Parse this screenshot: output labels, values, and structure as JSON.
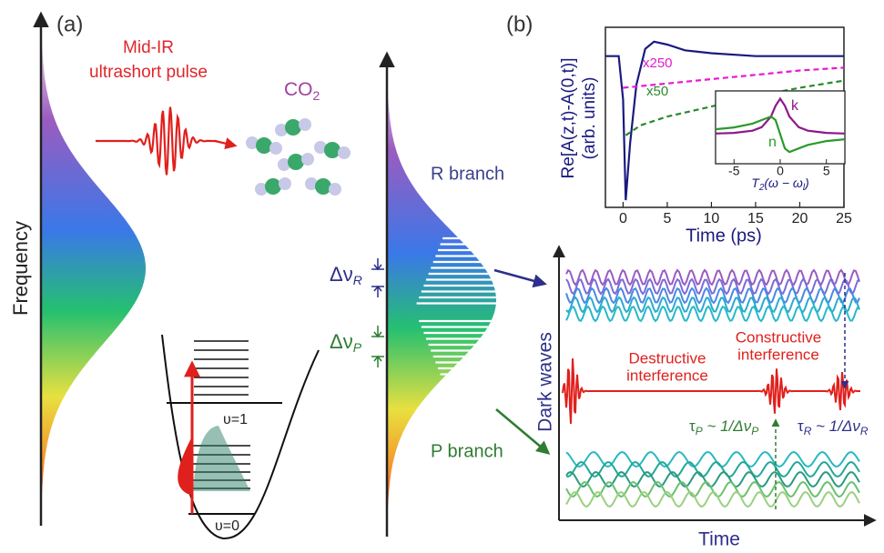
{
  "panel_a": {
    "label": "(a)",
    "pulse_title": [
      "Mid-IR",
      "ultrashort pulse"
    ],
    "molecule": {
      "base": "CO",
      "sub": "2"
    },
    "axis_label": "Frequency",
    "level_upper": "υ=1",
    "level_lower": "υ=0",
    "r_branch": "R branch",
    "p_branch": "P branch",
    "delta_r": {
      "symbol": "Δν",
      "sub": "R"
    },
    "delta_p": {
      "symbol": "Δν",
      "sub": "P"
    }
  },
  "panel_b": {
    "label": "(b)",
    "axis_y": "Dark waves",
    "axis_x": "Time",
    "destructive": [
      "Destructive",
      "interference"
    ],
    "constructive": [
      "Constructive",
      "interference"
    ],
    "tau_p": [
      "τ",
      "P",
      " ~ 1/Δν",
      "P"
    ],
    "tau_r": [
      "τ",
      "R",
      " ~ 1/Δν",
      "R"
    ]
  },
  "chart_data": {
    "type": "line",
    "ylabel": "Re[A(z,t)-A(0,t)]",
    "ylabel2": "(arb. units)",
    "xlabel": "Time (ps)",
    "xlim": [
      -2,
      25
    ],
    "xticks": [
      0,
      5,
      10,
      15,
      20,
      25
    ],
    "ylim": [
      -1.05,
      0.2
    ],
    "series": [
      {
        "color": "#1a1a80",
        "x": [
          -2,
          -0.5,
          0,
          0.3,
          0.8,
          1.5,
          2.5,
          3.5,
          5,
          7,
          10,
          15,
          20,
          25
        ],
        "values": [
          0,
          0,
          -0.3,
          -1,
          -0.6,
          -0.2,
          0.05,
          0.1,
          0.08,
          0.04,
          0.02,
          0,
          0,
          0
        ]
      },
      {
        "name": "x250",
        "color": "#e619d0",
        "dashed": true,
        "x": [
          0,
          5,
          10,
          15,
          20,
          25
        ],
        "values": [
          -0.22,
          -0.19,
          -0.16,
          -0.13,
          -0.1,
          -0.08
        ]
      },
      {
        "name": "x50",
        "color": "#2a8a2a",
        "dashed": true,
        "x": [
          0.3,
          2,
          5,
          10,
          15,
          20,
          25
        ],
        "values": [
          -0.55,
          -0.48,
          -0.42,
          -0.35,
          -0.28,
          -0.22,
          -0.17
        ]
      }
    ],
    "inset": {
      "xlim": [
        -7,
        7
      ],
      "xticks": [
        -5,
        0,
        5
      ],
      "ylim": [
        -0.7,
        1.05
      ],
      "xlabel": [
        "T",
        "2",
        "(ω − ω",
        "l",
        ")"
      ],
      "series": [
        {
          "name": "k",
          "color": "#8b1a8b",
          "x": [
            -7,
            -5,
            -3,
            -2,
            -1,
            -0.5,
            0,
            0.5,
            1,
            2,
            3,
            5,
            7
          ],
          "values": [
            0.018,
            0.035,
            0.09,
            0.18,
            0.45,
            0.72,
            0.9,
            0.72,
            0.45,
            0.18,
            0.09,
            0.035,
            0.018
          ]
        },
        {
          "name": "n",
          "color": "#2a9a2a",
          "x": [
            -7,
            -5,
            -3,
            -2,
            -1,
            -0.5,
            0,
            0.5,
            1,
            2,
            3,
            5,
            7
          ],
          "values": [
            0.126,
            0.173,
            0.27,
            0.36,
            0.45,
            0.36,
            0,
            -0.36,
            -0.45,
            -0.36,
            -0.27,
            -0.173,
            -0.126
          ]
        }
      ]
    }
  }
}
